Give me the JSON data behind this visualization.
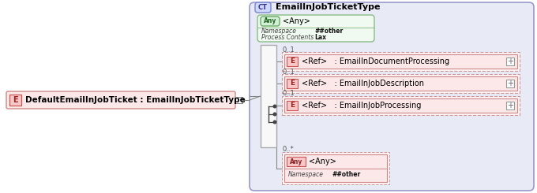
{
  "bg_color": "#ffffff",
  "panel_bg": "#e8eaf6",
  "panel_border": "#9999cc",
  "any_box_bg": "#f0faf0",
  "any_box_border": "#88bb88",
  "any_badge_bg": "#d4f0d4",
  "any_badge_border": "#66aa66",
  "ref_dashed_bg": "#fff4f4",
  "ref_dashed_border": "#cc9999",
  "ref_solid_bg": "#fce8e8",
  "ref_solid_border": "#cc8888",
  "e_badge_bg": "#f8c8c8",
  "e_badge_border": "#cc5555",
  "ct_badge_bg": "#d0d8ff",
  "ct_badge_border": "#7788cc",
  "main_box_bg": "#fce8e8",
  "main_box_border": "#cc8888",
  "seq_box_bg": "#f0f0f0",
  "seq_box_border": "#aaaaaa",
  "any_bot_badge_bg": "#f8c8c8",
  "any_bot_badge_border": "#cc5555",
  "any_bot_box_bg": "#fce8e8",
  "any_bot_box_border": "#cc8888",
  "line_color": "#888888",
  "text_color": "#000000",
  "title": "EmailInJobTicketType",
  "main_label": "DefaultEmailInJobTicket : EmailInJobTicketType",
  "any_top_label": "<Any>",
  "any_top_ns": "##other",
  "any_top_pc": "Lax",
  "elements": [
    {
      "label": "<Ref>   : EmailInDocumentProcessing",
      "mult": "0..1"
    },
    {
      "label": "<Ref>   : EmailInJobDescription",
      "mult": "0..1"
    },
    {
      "label": "<Ref>   : EmailInJobProcessing",
      "mult": "0..1"
    }
  ],
  "any_bottom_label": "<Any>",
  "any_bottom_ns": "##other",
  "any_bottom_mult": "0..*"
}
